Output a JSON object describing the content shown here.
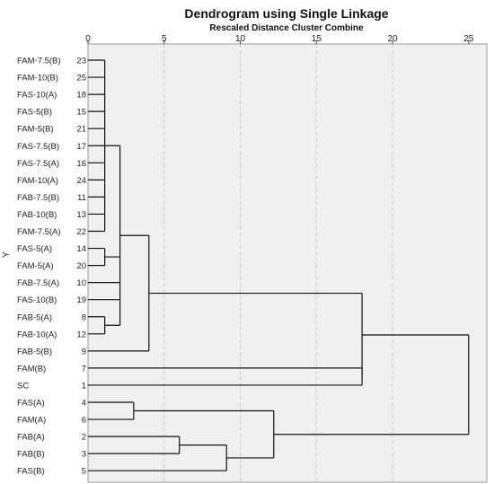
{
  "chart_data": {
    "type": "dendrogram",
    "title": "Dendrogram using Single Linkage",
    "xlabel": "Rescaled Distance Cluster Combine",
    "ylabel": "Y",
    "xlim": [
      0,
      25
    ],
    "xticks": [
      0,
      5,
      10,
      15,
      20,
      25
    ],
    "grid": true,
    "leaves": [
      {
        "label": "FAM-7.5(B)",
        "id": "23"
      },
      {
        "label": "FAM-10(B)",
        "id": "25"
      },
      {
        "label": "FAS-10(A)",
        "id": "18"
      },
      {
        "label": "FAS-5(B)",
        "id": "15"
      },
      {
        "label": "FAM-5(B)",
        "id": "21"
      },
      {
        "label": "FAS-7.5(B)",
        "id": "17"
      },
      {
        "label": "FAS-7.5(A)",
        "id": "16"
      },
      {
        "label": "FAM-10(A)",
        "id": "24"
      },
      {
        "label": "FAB-7.5(B)",
        "id": "11"
      },
      {
        "label": "FAB-10(B)",
        "id": "13"
      },
      {
        "label": "FAM-7.5(A)",
        "id": "22"
      },
      {
        "label": "FAS-5(A)",
        "id": "14"
      },
      {
        "label": "FAM-5(A)",
        "id": "20"
      },
      {
        "label": "FAB-7.5(A)",
        "id": "10"
      },
      {
        "label": "FAS-10(B)",
        "id": "19"
      },
      {
        "label": "FAB-5(A)",
        "id": "8"
      },
      {
        "label": "FAB-10(A)",
        "id": "12"
      },
      {
        "label": "FAB-5(B)",
        "id": "9"
      },
      {
        "label": "FAM(B)",
        "id": "7"
      },
      {
        "label": "SC",
        "id": "1"
      },
      {
        "label": "FAS(A)",
        "id": "4"
      },
      {
        "label": "FAM(A)",
        "id": "6"
      },
      {
        "label": "FAB(A)",
        "id": "2"
      },
      {
        "label": "FAB(B)",
        "id": "3"
      },
      {
        "label": "FAS(B)",
        "id": "5"
      }
    ],
    "merges": [
      {
        "children": [
          "L0",
          "L1",
          "L2",
          "L3",
          "L4",
          "L5",
          "L6",
          "L7",
          "L8",
          "L9",
          "L10"
        ],
        "distance": 1.1
      },
      {
        "children": [
          "L11",
          "L12"
        ],
        "distance": 1.1
      },
      {
        "children": [
          "L15",
          "L16"
        ],
        "distance": 1.1
      },
      {
        "children": [
          "M0",
          "M1",
          "L13",
          "L14",
          "M2"
        ],
        "distance": 2.1
      },
      {
        "children": [
          "M3",
          "L17"
        ],
        "distance": 4.0
      },
      {
        "children": [
          "L18",
          "L19"
        ],
        "distance": 18.0
      },
      {
        "children": [
          "M4",
          "M5"
        ],
        "distance": 18.0
      },
      {
        "children": [
          "L20",
          "L21"
        ],
        "distance": 3.0
      },
      {
        "children": [
          "L22",
          "L23"
        ],
        "distance": 6.0
      },
      {
        "children": [
          "M8",
          "L24"
        ],
        "distance": 9.1
      },
      {
        "children": [
          "M7",
          "M9"
        ],
        "distance": 12.2
      },
      {
        "children": [
          "M6",
          "M10"
        ],
        "distance": 25.0
      }
    ]
  }
}
